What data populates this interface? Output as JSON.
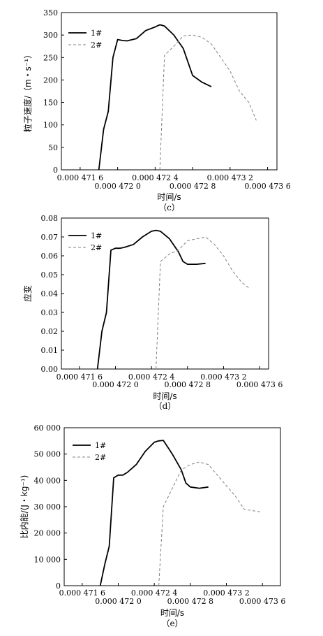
{
  "chart_data": [
    {
      "type": "line",
      "caption": "（c）",
      "xlabel": "时间/s",
      "ylabel": "粒子速度/（m・s⁻¹）",
      "xlim": [
        0.0004714,
        0.0004737
      ],
      "ylim": [
        0,
        350
      ],
      "x_ticks": [
        {
          "value": 0.0004716,
          "label": "0.000 471 6",
          "row": 0
        },
        {
          "value": 0.000472,
          "label": "0.000 472 0",
          "row": 1
        },
        {
          "value": 0.0004724,
          "label": "0.000 472 4",
          "row": 0
        },
        {
          "value": 0.0004728,
          "label": "0.000 472 8",
          "row": 1
        },
        {
          "value": 0.0004732,
          "label": "0.000 473 2",
          "row": 0
        },
        {
          "value": 0.0004736,
          "label": "0.000 473 6",
          "row": 1
        }
      ],
      "y_ticks": [
        {
          "value": 0,
          "label": "0"
        },
        {
          "value": 50,
          "label": "50"
        },
        {
          "value": 100,
          "label": "100"
        },
        {
          "value": 150,
          "label": "150"
        },
        {
          "value": 200,
          "label": "200"
        },
        {
          "value": 250,
          "label": "250"
        },
        {
          "value": 300,
          "label": "300"
        },
        {
          "value": 350,
          "label": "350"
        }
      ],
      "legend_position": "top-left",
      "series": [
        {
          "name": "1#",
          "style": "solid",
          "color": "#000000",
          "x": [
            0.0004718,
            0.00047185,
            0.0004719,
            0.00047195,
            0.000472,
            0.00047205,
            0.0004721,
            0.0004722,
            0.0004723,
            0.0004724,
            0.00047245,
            0.0004725,
            0.0004726,
            0.0004727,
            0.00047275,
            0.0004728,
            0.0004729,
            0.000473
          ],
          "y": [
            0,
            90,
            130,
            250,
            290,
            288,
            287,
            292,
            310,
            318,
            323,
            320,
            300,
            270,
            240,
            210,
            195,
            185
          ]
        },
        {
          "name": "2#",
          "style": "dashed",
          "color": "#808080",
          "x": [
            0.00047245,
            0.0004725,
            0.0004726,
            0.0004727,
            0.0004728,
            0.0004729,
            0.000473,
            0.0004731,
            0.0004732,
            0.0004733,
            0.0004734,
            0.00047348
          ],
          "y": [
            0,
            255,
            275,
            298,
            300,
            295,
            280,
            250,
            220,
            175,
            150,
            110
          ]
        }
      ]
    },
    {
      "type": "line",
      "caption": "（d）",
      "xlabel": "时间/s",
      "ylabel": "应变",
      "xlim": [
        0.0004714,
        0.0004737
      ],
      "ylim": [
        0,
        0.08
      ],
      "x_ticks": [
        {
          "value": 0.0004716,
          "label": "0.000 471 6",
          "row": 0
        },
        {
          "value": 0.000472,
          "label": "0.000 472 0",
          "row": 1
        },
        {
          "value": 0.0004724,
          "label": "0.000 472 4",
          "row": 0
        },
        {
          "value": 0.0004728,
          "label": "0.000 472 8",
          "row": 1
        },
        {
          "value": 0.0004732,
          "label": "0.000 473 2",
          "row": 0
        },
        {
          "value": 0.0004736,
          "label": "0.000 473 6",
          "row": 1
        }
      ],
      "y_ticks": [
        {
          "value": 0,
          "label": "0.00"
        },
        {
          "value": 0.01,
          "label": "0.01"
        },
        {
          "value": 0.02,
          "label": "0.02"
        },
        {
          "value": 0.03,
          "label": "0.03"
        },
        {
          "value": 0.04,
          "label": "0.04"
        },
        {
          "value": 0.05,
          "label": "0.05"
        },
        {
          "value": 0.06,
          "label": "0.06"
        },
        {
          "value": 0.07,
          "label": "0.07"
        },
        {
          "value": 0.08,
          "label": "0.08"
        }
      ],
      "legend_position": "top-left",
      "series": [
        {
          "name": "1#",
          "style": "solid",
          "color": "#000000",
          "x": [
            0.0004718,
            0.00047185,
            0.0004719,
            0.00047195,
            0.000472,
            0.00047205,
            0.0004721,
            0.0004722,
            0.0004723,
            0.0004724,
            0.00047245,
            0.0004725,
            0.0004726,
            0.0004727,
            0.00047275,
            0.0004728,
            0.0004729,
            0.000473
          ],
          "y": [
            0,
            0.02,
            0.03,
            0.063,
            0.064,
            0.064,
            0.0645,
            0.066,
            0.07,
            0.073,
            0.0735,
            0.073,
            0.069,
            0.062,
            0.057,
            0.0555,
            0.0555,
            0.056
          ]
        },
        {
          "name": "2#",
          "style": "dashed",
          "color": "#808080",
          "x": [
            0.00047245,
            0.0004725,
            0.0004726,
            0.0004727,
            0.0004728,
            0.0004729,
            0.000473,
            0.0004731,
            0.0004732,
            0.0004733,
            0.0004734,
            0.00047348
          ],
          "y": [
            0,
            0.057,
            0.061,
            0.063,
            0.068,
            0.069,
            0.07,
            0.066,
            0.06,
            0.052,
            0.046,
            0.043
          ]
        }
      ]
    },
    {
      "type": "line",
      "caption": "（e）",
      "xlabel": "时间/s",
      "ylabel": "比内能/(J・kg⁻¹)",
      "xlim": [
        0.0004714,
        0.0004738
      ],
      "ylim": [
        0,
        60000
      ],
      "x_ticks": [
        {
          "value": 0.0004716,
          "label": "0.000 471 6",
          "row": 0
        },
        {
          "value": 0.000472,
          "label": "0.000 472 0",
          "row": 1
        },
        {
          "value": 0.0004724,
          "label": "0.000 472 4",
          "row": 0
        },
        {
          "value": 0.0004728,
          "label": "0.000 472 8",
          "row": 1
        },
        {
          "value": 0.0004732,
          "label": "0.000 473 2",
          "row": 0
        },
        {
          "value": 0.0004736,
          "label": "0.000 473 6",
          "row": 1
        }
      ],
      "y_ticks": [
        {
          "value": 0,
          "label": "0"
        },
        {
          "value": 10000,
          "label": "10 000"
        },
        {
          "value": 20000,
          "label": "20 000"
        },
        {
          "value": 30000,
          "label": "30 000"
        },
        {
          "value": 40000,
          "label": "40 000"
        },
        {
          "value": 50000,
          "label": "50 000"
        },
        {
          "value": 60000,
          "label": "60 000"
        }
      ],
      "legend_position": "top-left",
      "series": [
        {
          "name": "1#",
          "style": "solid",
          "color": "#000000",
          "x": [
            0.0004718,
            0.00047185,
            0.0004719,
            0.00047195,
            0.000472,
            0.00047205,
            0.0004721,
            0.0004722,
            0.0004723,
            0.0004724,
            0.00047245,
            0.0004725,
            0.0004726,
            0.0004727,
            0.00047275,
            0.0004728,
            0.0004729,
            0.000473
          ],
          "y": [
            0,
            8000,
            15000,
            41000,
            42000,
            42000,
            43000,
            46000,
            51000,
            54500,
            55000,
            55200,
            50000,
            44000,
            39000,
            37500,
            37000,
            37500
          ]
        },
        {
          "name": "2#",
          "style": "dashed",
          "color": "#808080",
          "x": [
            0.00047245,
            0.0004725,
            0.0004726,
            0.0004727,
            0.0004728,
            0.0004729,
            0.000473,
            0.0004731,
            0.0004732,
            0.0004733,
            0.0004734,
            0.00047358
          ],
          "y": [
            0,
            30000,
            37000,
            44000,
            46000,
            47000,
            46000,
            42000,
            38000,
            34000,
            29000,
            28000
          ]
        }
      ]
    }
  ]
}
